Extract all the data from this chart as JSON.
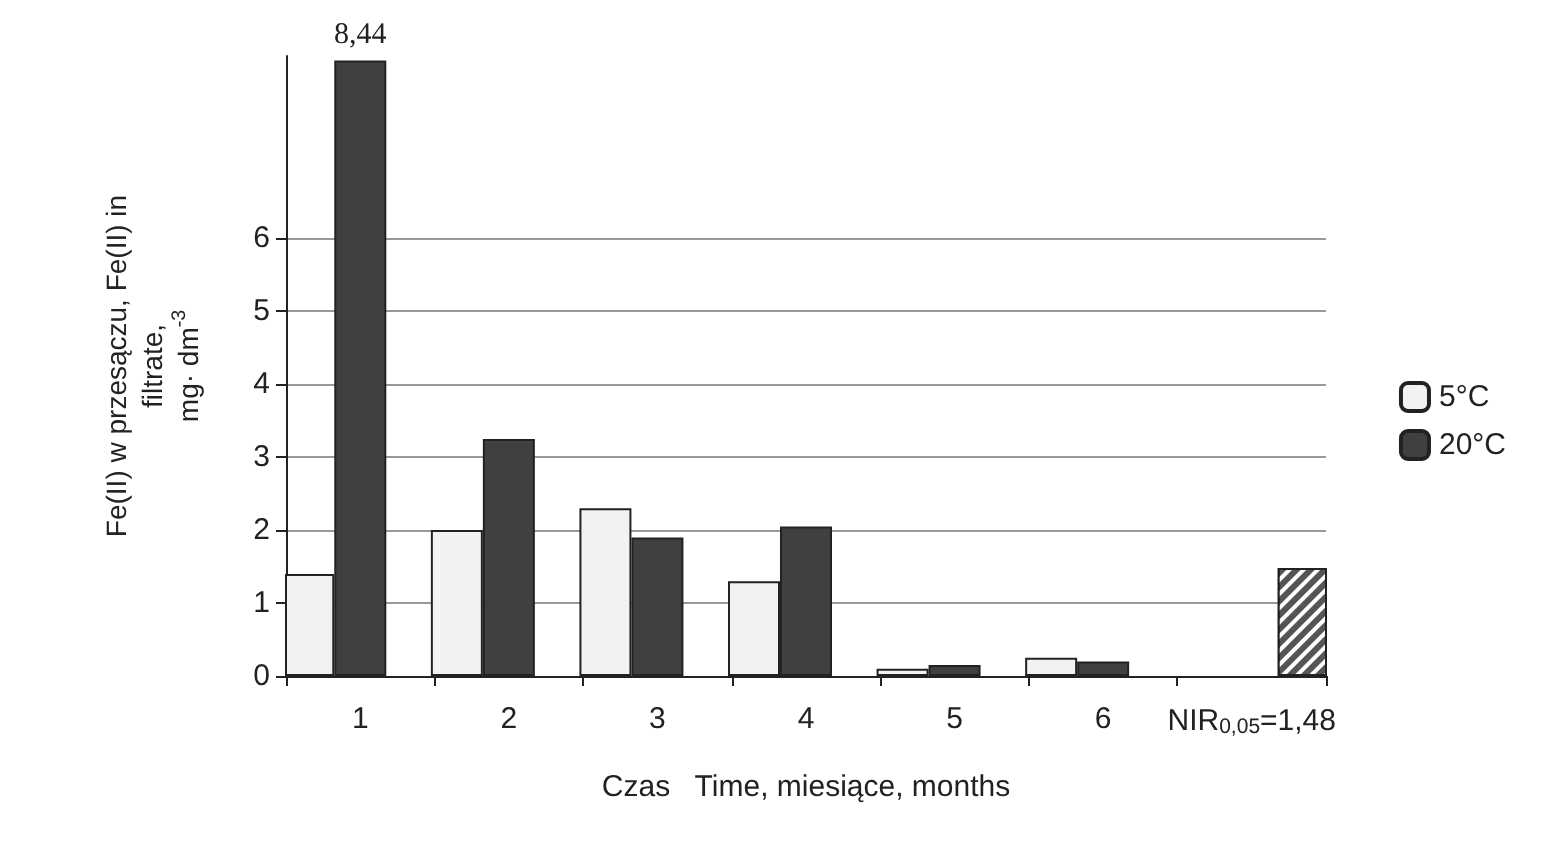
{
  "chart_data": {
    "type": "bar",
    "ylabel": "Fe(II) w przesączu, Fe(II) in\nfiltrate,\nmg· dm$^{-3}$",
    "xlabel": "Czas   Time, miesiące, months",
    "categories": [
      "1",
      "2",
      "3",
      "4",
      "5",
      "6",
      "NIR$_{0,05}$=1,48"
    ],
    "series": [
      {
        "name": "5°C",
        "color": "#f2f2f2",
        "values": [
          1.4,
          2.0,
          2.3,
          1.3,
          0.1,
          0.25,
          null
        ]
      },
      {
        "name": "20°C",
        "color": "#404040",
        "values": [
          8.44,
          3.25,
          1.9,
          2.05,
          0.15,
          0.2,
          null
        ],
        "value_labels": [
          "8,44",
          null,
          null,
          null,
          null,
          null,
          null
        ]
      },
      {
        "color": "#555555",
        "values": [
          null,
          null,
          null,
          null,
          null,
          null,
          1.48
        ]
      }
    ],
    "ylim": [
      0,
      8.5
    ],
    "yticks": [
      0,
      1,
      2,
      3,
      4,
      5,
      6
    ],
    "grid": "y",
    "legend": "right"
  }
}
